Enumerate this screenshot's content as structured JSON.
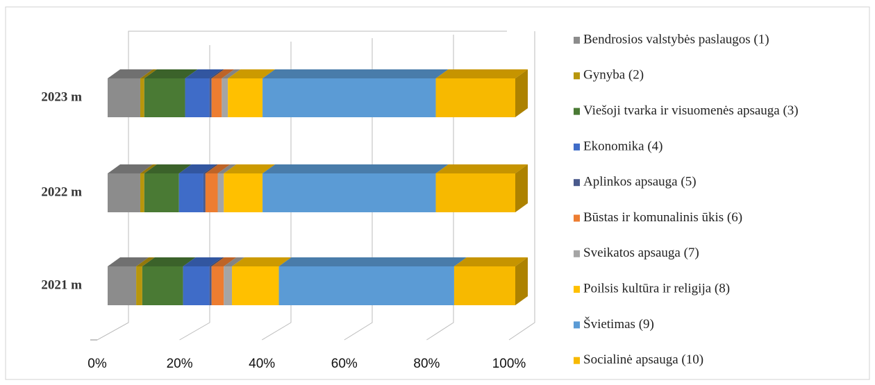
{
  "chart_data": {
    "type": "bar3d_stacked_percent",
    "orientation": "horizontal",
    "categories": [
      "2023 m",
      "2022 m",
      "2021 m"
    ],
    "series": [
      {
        "name": "Bendrosios valstybės paslaugos (1)",
        "color": "#8c8c8c",
        "values": [
          8,
          8,
          7
        ]
      },
      {
        "name": "Gynyba (2)",
        "color": "#b8960c",
        "values": [
          1,
          1,
          1.5
        ]
      },
      {
        "name": "Viešoji tvarka ir visuomenės apsauga (3)",
        "color": "#4a7a34",
        "values": [
          10,
          8.5,
          10
        ]
      },
      {
        "name": "Ekonomika (4)",
        "color": "#3f6cc8",
        "values": [
          6,
          6,
          6.5
        ]
      },
      {
        "name": "Aplinkos apsauga (5)",
        "color": "#4a5a8c",
        "values": [
          0.5,
          0.5,
          0.5
        ]
      },
      {
        "name": "Būstas ir komunalinis ūkis (6)",
        "color": "#ed7d31",
        "values": [
          2.5,
          3,
          3
        ]
      },
      {
        "name": "Sveikatos apsauga (7)",
        "color": "#a5a5a5",
        "values": [
          1.5,
          1.5,
          2
        ]
      },
      {
        "name": "Poilsis kultūra ir religija (8)",
        "color": "#ffc000",
        "values": [
          8.5,
          9.5,
          11.5
        ]
      },
      {
        "name": "Švietimas (9)",
        "color": "#5b9bd5",
        "values": [
          42.5,
          42.5,
          43
        ]
      },
      {
        "name": "Socialinė apsauga (10)",
        "color": "#f7b900",
        "values": [
          19.5,
          19.5,
          15
        ]
      }
    ],
    "xlim": [
      0,
      100
    ],
    "xticks": [
      {
        "value": 0,
        "label": "0%"
      },
      {
        "value": 20,
        "label": "20%"
      },
      {
        "value": 40,
        "label": "40%"
      },
      {
        "value": 60,
        "label": "60%"
      },
      {
        "value": 80,
        "label": "80%"
      },
      {
        "value": 100,
        "label": "100%"
      }
    ],
    "grid": true,
    "legend": "right"
  }
}
